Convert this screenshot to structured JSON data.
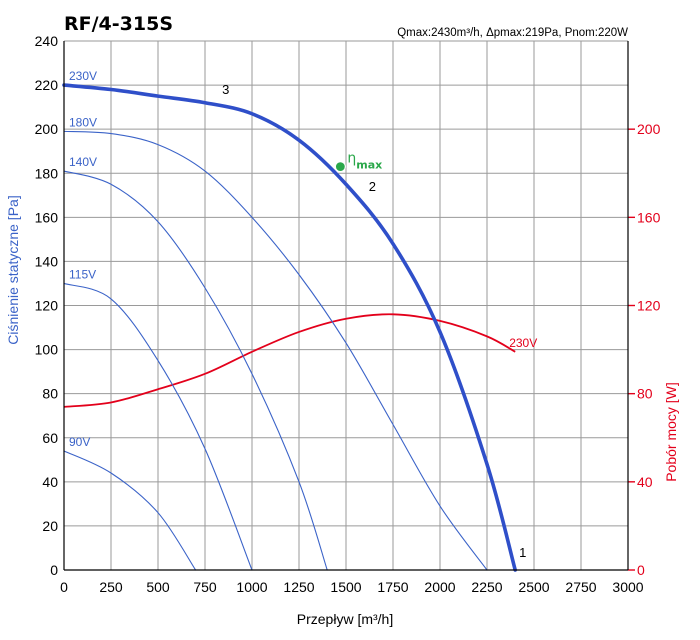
{
  "chart_data": {
    "type": "line",
    "title": "RF/4-315S",
    "specs": "Qmax:2430m³/h, Δpmax:219Pa, Pnom:220W",
    "xlabel": "Przepływ [m³/h]",
    "ylabel": "Ciśnienie statyczne [Pa]",
    "y2label": "Pobór mocy [W]",
    "xlim": [
      0,
      3000
    ],
    "ylim": [
      0,
      240
    ],
    "y2lim": [
      0,
      240
    ],
    "x_ticks": [
      0,
      250,
      500,
      750,
      1000,
      1250,
      1500,
      1750,
      2000,
      2250,
      2500,
      2750,
      3000
    ],
    "y_ticks": [
      0,
      20,
      40,
      60,
      80,
      100,
      120,
      140,
      160,
      180,
      200,
      220,
      240
    ],
    "y2_ticks": [
      0,
      40,
      80,
      120,
      160,
      200
    ],
    "grid": true,
    "colors": {
      "pressure": "#3b63c8",
      "main": "#2f4fc9",
      "power": "#e3001b",
      "eta": "#2aa84a",
      "grid": "#9a9a9a"
    },
    "series": [
      {
        "name": "230V",
        "kind": "pressure",
        "emphasis": true,
        "x": [
          0,
          250,
          500,
          750,
          1000,
          1250,
          1500,
          1750,
          2000,
          2250,
          2400
        ],
        "y": [
          220,
          218,
          215,
          212,
          207,
          195,
          175,
          148,
          108,
          48,
          0
        ]
      },
      {
        "name": "180V",
        "kind": "pressure",
        "x": [
          0,
          250,
          500,
          750,
          1000,
          1250,
          1500,
          1750,
          2000,
          2250
        ],
        "y": [
          199,
          198,
          193,
          181,
          160,
          134,
          103,
          66,
          29,
          0
        ]
      },
      {
        "name": "140V",
        "kind": "pressure",
        "x": [
          0,
          250,
          500,
          750,
          1000,
          1250,
          1400
        ],
        "y": [
          181,
          175,
          158,
          128,
          89,
          40,
          0
        ]
      },
      {
        "name": "115V",
        "kind": "pressure",
        "x": [
          0,
          250,
          500,
          750,
          1000
        ],
        "y": [
          130,
          123,
          95,
          55,
          0
        ]
      },
      {
        "name": "90V",
        "kind": "pressure",
        "x": [
          0,
          250,
          500,
          700
        ],
        "y": [
          54,
          44,
          26,
          0
        ]
      },
      {
        "name": "230V",
        "kind": "power",
        "x": [
          0,
          250,
          500,
          750,
          1000,
          1250,
          1500,
          1750,
          2000,
          2250,
          2400
        ],
        "y": [
          74,
          76,
          82,
          89,
          99,
          108,
          114,
          116,
          113,
          106,
          99
        ]
      }
    ],
    "annotations": [
      {
        "text": "1",
        "x": 2440,
        "y": 6
      },
      {
        "text": "2",
        "x": 1640,
        "y": 172
      },
      {
        "text": "3",
        "x": 860,
        "y": 216
      }
    ],
    "eta_max": {
      "label": "η",
      "sub": "max",
      "x": 1470,
      "y": 183
    }
  }
}
